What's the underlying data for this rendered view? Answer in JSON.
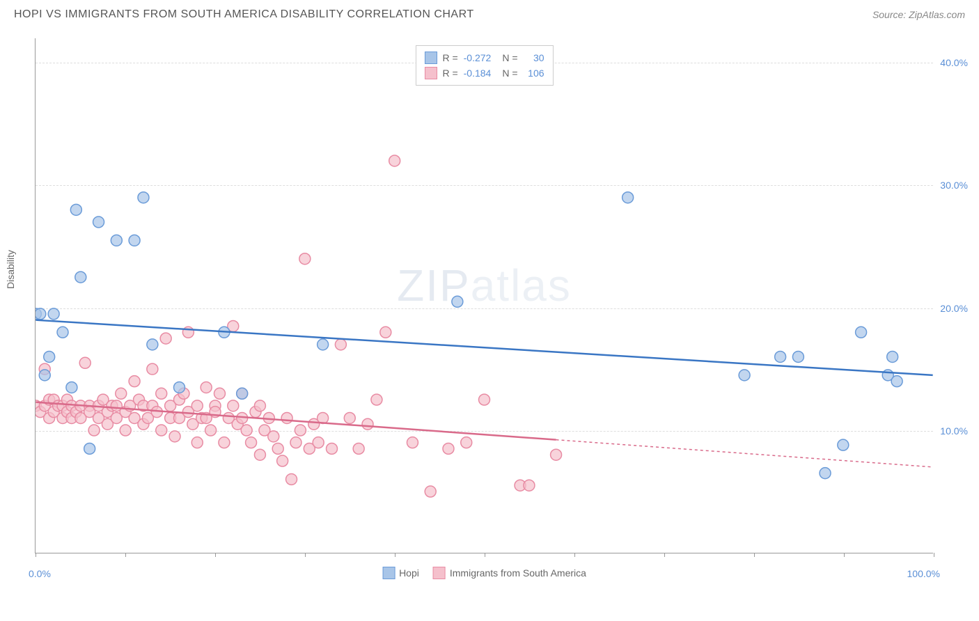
{
  "title": "HOPI VS IMMIGRANTS FROM SOUTH AMERICA DISABILITY CORRELATION CHART",
  "source": "Source: ZipAtlas.com",
  "watermark_bold": "ZIP",
  "watermark_thin": "atlas",
  "chart": {
    "type": "scatter",
    "xlim": [
      0,
      100
    ],
    "ylim": [
      0,
      42
    ],
    "y_ticks": [
      10,
      20,
      30,
      40
    ],
    "y_tick_labels": [
      "10.0%",
      "20.0%",
      "30.0%",
      "40.0%"
    ],
    "x_tick_positions": [
      0,
      10,
      20,
      30,
      40,
      50,
      60,
      70,
      80,
      90,
      100
    ],
    "x_min_label": "0.0%",
    "x_max_label": "100.0%",
    "y_axis_title": "Disability",
    "background_color": "#ffffff",
    "grid_color": "#dddddd",
    "series": [
      {
        "name": "Hopi",
        "color_fill": "#a8c5e8",
        "color_stroke": "#6a9bd8",
        "line_color": "#3a76c4",
        "marker_radius": 8,
        "r_value": "-0.272",
        "n_value": "30",
        "trend": {
          "x1": 0,
          "y1": 19.0,
          "x2": 100,
          "y2": 14.5,
          "solid_until": 100
        },
        "points": [
          [
            0,
            19.5
          ],
          [
            0.5,
            19.5
          ],
          [
            1,
            14.5
          ],
          [
            1.5,
            16.0
          ],
          [
            2,
            19.5
          ],
          [
            3,
            18.0
          ],
          [
            4,
            13.5
          ],
          [
            4.5,
            28.0
          ],
          [
            5,
            22.5
          ],
          [
            6,
            8.5
          ],
          [
            7,
            27.0
          ],
          [
            9,
            25.5
          ],
          [
            11,
            25.5
          ],
          [
            12,
            29.0
          ],
          [
            13,
            17.0
          ],
          [
            16,
            13.5
          ],
          [
            21,
            18.0
          ],
          [
            23,
            13.0
          ],
          [
            32,
            17.0
          ],
          [
            47,
            20.5
          ],
          [
            66,
            29.0
          ],
          [
            79,
            14.5
          ],
          [
            83,
            16.0
          ],
          [
            85,
            16.0
          ],
          [
            88,
            6.5
          ],
          [
            90,
            8.8
          ],
          [
            92,
            18.0
          ],
          [
            95,
            14.5
          ],
          [
            95.5,
            16.0
          ],
          [
            96,
            14.0
          ]
        ]
      },
      {
        "name": "Immigrants from South America",
        "color_fill": "#f5c0cc",
        "color_stroke": "#e88ba3",
        "line_color": "#d96a8a",
        "marker_radius": 8,
        "r_value": "-0.184",
        "n_value": "106",
        "trend": {
          "x1": 0,
          "y1": 12.3,
          "x2": 100,
          "y2": 7.0,
          "solid_until": 58
        },
        "points": [
          [
            0,
            12
          ],
          [
            0.5,
            11.5
          ],
          [
            1,
            12
          ],
          [
            1,
            15
          ],
          [
            1.5,
            12.5
          ],
          [
            1.5,
            11
          ],
          [
            2,
            11.5
          ],
          [
            2,
            12.5
          ],
          [
            2.5,
            12
          ],
          [
            3,
            12
          ],
          [
            3,
            11
          ],
          [
            3.5,
            12.5
          ],
          [
            3.5,
            11.5
          ],
          [
            4,
            12
          ],
          [
            4,
            11
          ],
          [
            4.5,
            11.5
          ],
          [
            5,
            12
          ],
          [
            5,
            11
          ],
          [
            5.5,
            15.5
          ],
          [
            6,
            12
          ],
          [
            6,
            11.5
          ],
          [
            6.5,
            10
          ],
          [
            7,
            12
          ],
          [
            7,
            11
          ],
          [
            7.5,
            12.5
          ],
          [
            8,
            11.5
          ],
          [
            8,
            10.5
          ],
          [
            8.5,
            12
          ],
          [
            9,
            11
          ],
          [
            9,
            12
          ],
          [
            9.5,
            13
          ],
          [
            10,
            11.5
          ],
          [
            10,
            10
          ],
          [
            10.5,
            12
          ],
          [
            11,
            11
          ],
          [
            11,
            14
          ],
          [
            11.5,
            12.5
          ],
          [
            12,
            10.5
          ],
          [
            12,
            12
          ],
          [
            12.5,
            11
          ],
          [
            13,
            15
          ],
          [
            13,
            12
          ],
          [
            13.5,
            11.5
          ],
          [
            14,
            13
          ],
          [
            14,
            10
          ],
          [
            14.5,
            17.5
          ],
          [
            15,
            12
          ],
          [
            15,
            11
          ],
          [
            15.5,
            9.5
          ],
          [
            16,
            12.5
          ],
          [
            16,
            11
          ],
          [
            16.5,
            13
          ],
          [
            17,
            18
          ],
          [
            17,
            11.5
          ],
          [
            17.5,
            10.5
          ],
          [
            18,
            12
          ],
          [
            18,
            9
          ],
          [
            18.5,
            11
          ],
          [
            19,
            13.5
          ],
          [
            19,
            11
          ],
          [
            19.5,
            10
          ],
          [
            20,
            12
          ],
          [
            20,
            11.5
          ],
          [
            20.5,
            13
          ],
          [
            21,
            9
          ],
          [
            21.5,
            11
          ],
          [
            22,
            18.5
          ],
          [
            22,
            12
          ],
          [
            22.5,
            10.5
          ],
          [
            23,
            11
          ],
          [
            23,
            13
          ],
          [
            23.5,
            10
          ],
          [
            24,
            9
          ],
          [
            24.5,
            11.5
          ],
          [
            25,
            12
          ],
          [
            25,
            8
          ],
          [
            25.5,
            10
          ],
          [
            26,
            11
          ],
          [
            26.5,
            9.5
          ],
          [
            27,
            8.5
          ],
          [
            27.5,
            7.5
          ],
          [
            28,
            11
          ],
          [
            28.5,
            6
          ],
          [
            29,
            9
          ],
          [
            29.5,
            10
          ],
          [
            30,
            24
          ],
          [
            30.5,
            8.5
          ],
          [
            31,
            10.5
          ],
          [
            31.5,
            9
          ],
          [
            32,
            11
          ],
          [
            33,
            8.5
          ],
          [
            34,
            17
          ],
          [
            35,
            11
          ],
          [
            36,
            8.5
          ],
          [
            37,
            10.5
          ],
          [
            38,
            12.5
          ],
          [
            39,
            18
          ],
          [
            40,
            32
          ],
          [
            42,
            9
          ],
          [
            44,
            5
          ],
          [
            46,
            8.5
          ],
          [
            48,
            9
          ],
          [
            50,
            12.5
          ],
          [
            54,
            5.5
          ],
          [
            55,
            5.5
          ],
          [
            58,
            8
          ]
        ]
      }
    ]
  },
  "legend_bottom": [
    {
      "label": "Hopi",
      "fill": "#a8c5e8",
      "stroke": "#6a9bd8"
    },
    {
      "label": "Immigrants from South America",
      "fill": "#f5c0cc",
      "stroke": "#e88ba3"
    }
  ]
}
